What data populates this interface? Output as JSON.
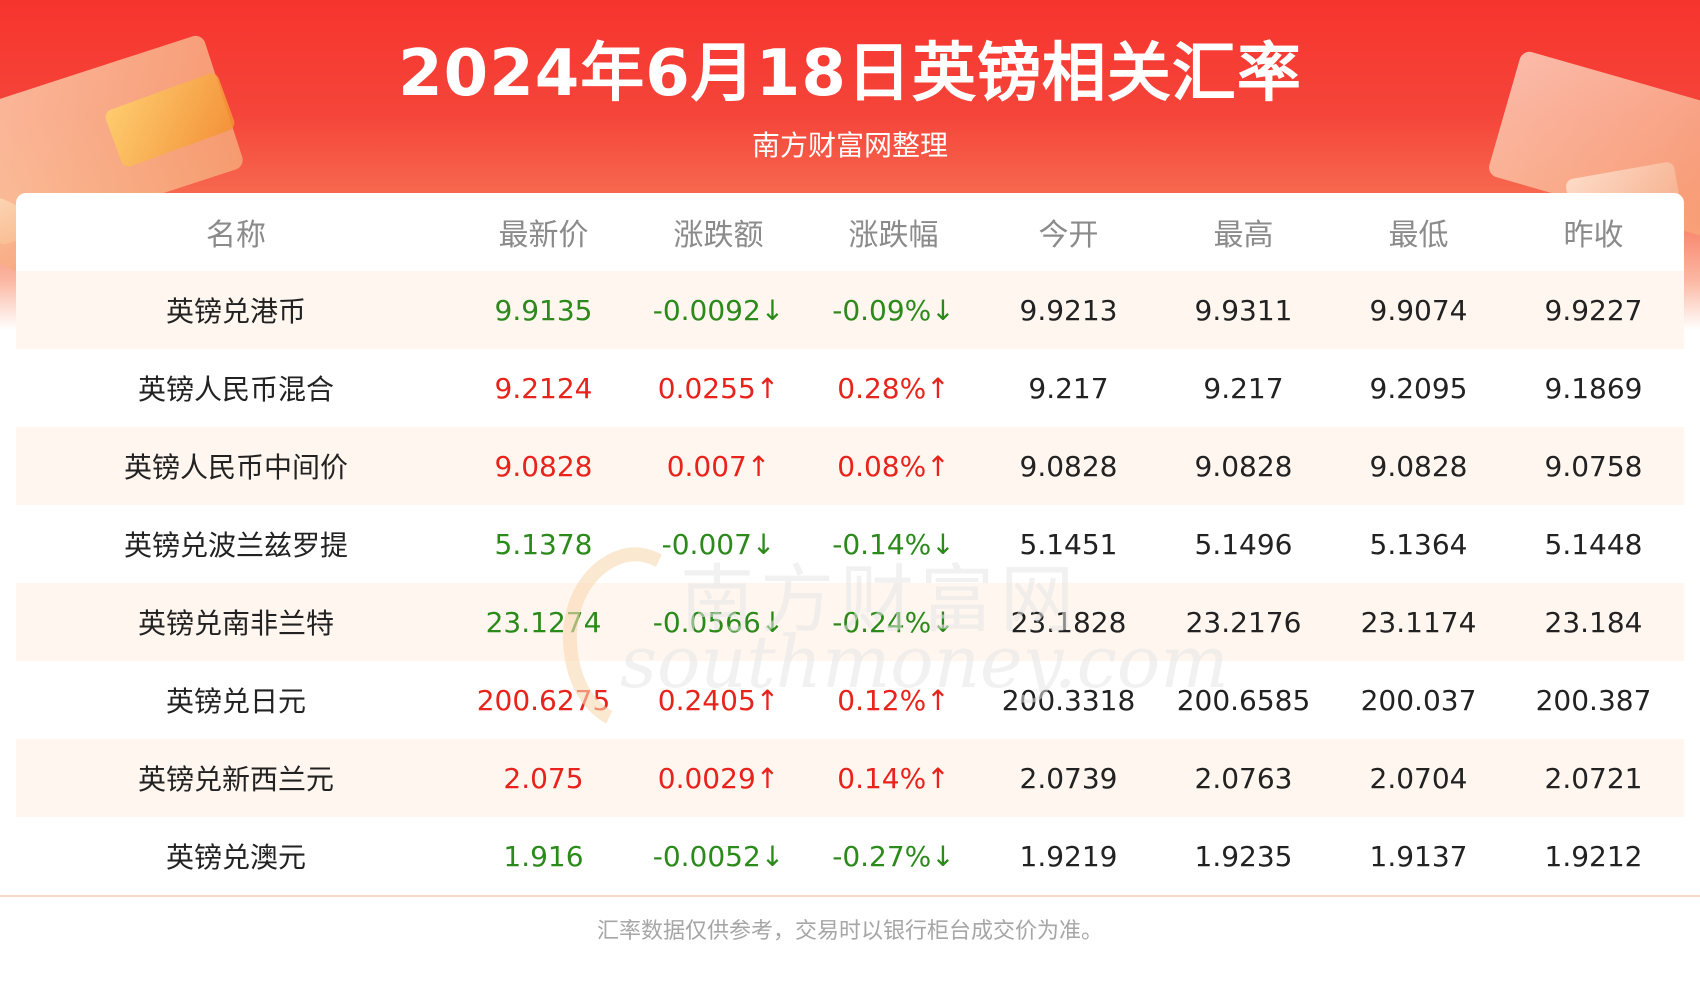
{
  "header": {
    "title": "2024年6月18日英镑相关汇率",
    "subtitle": "南方财富网整理"
  },
  "table": {
    "columns": [
      "名称",
      "最新价",
      "涨跌额",
      "涨跌幅",
      "今开",
      "最高",
      "最低",
      "昨收"
    ],
    "rows": [
      {
        "name": "英镑兑港币",
        "direction": "down",
        "latest": "9.9135",
        "change": "-0.0092↓",
        "change_pct": "-0.09%↓",
        "open": "9.9213",
        "high": "9.9311",
        "low": "9.9074",
        "prev_close": "9.9227"
      },
      {
        "name": "英镑人民币混合",
        "direction": "up",
        "latest": "9.2124",
        "change": "0.0255↑",
        "change_pct": "0.28%↑",
        "open": "9.217",
        "high": "9.217",
        "low": "9.2095",
        "prev_close": "9.1869"
      },
      {
        "name": "英镑人民币中间价",
        "direction": "up",
        "latest": "9.0828",
        "change": "0.007↑",
        "change_pct": "0.08%↑",
        "open": "9.0828",
        "high": "9.0828",
        "low": "9.0828",
        "prev_close": "9.0758"
      },
      {
        "name": "英镑兑波兰兹罗提",
        "direction": "down",
        "latest": "5.1378",
        "change": "-0.007↓",
        "change_pct": "-0.14%↓",
        "open": "5.1451",
        "high": "5.1496",
        "low": "5.1364",
        "prev_close": "5.1448"
      },
      {
        "name": "英镑兑南非兰特",
        "direction": "down",
        "latest": "23.1274",
        "change": "-0.0566↓",
        "change_pct": "-0.24%↓",
        "open": "23.1828",
        "high": "23.2176",
        "low": "23.1174",
        "prev_close": "23.184"
      },
      {
        "name": "英镑兑日元",
        "direction": "up",
        "latest": "200.6275",
        "change": "0.2405↑",
        "change_pct": "0.12%↑",
        "open": "200.3318",
        "high": "200.6585",
        "low": "200.037",
        "prev_close": "200.387"
      },
      {
        "name": "英镑兑新西兰元",
        "direction": "up",
        "latest": "2.075",
        "change": "0.0029↑",
        "change_pct": "0.14%↑",
        "open": "2.0739",
        "high": "2.0763",
        "low": "2.0704",
        "prev_close": "2.0721"
      },
      {
        "name": "英镑兑澳元",
        "direction": "down",
        "latest": "1.916",
        "change": "-0.0052↓",
        "change_pct": "-0.27%↓",
        "open": "1.9219",
        "high": "1.9235",
        "low": "1.9137",
        "prev_close": "1.9212"
      }
    ]
  },
  "watermark": {
    "cn": "南方财富网",
    "en": "southmoney.com"
  },
  "footnote": "汇率数据仅供参考，交易时以银行柜台成交价为准。",
  "colors": {
    "up": "#e8231c",
    "down": "#2b8a1b",
    "header_red": "#f6342e",
    "alt_row": "#fff6ef"
  }
}
